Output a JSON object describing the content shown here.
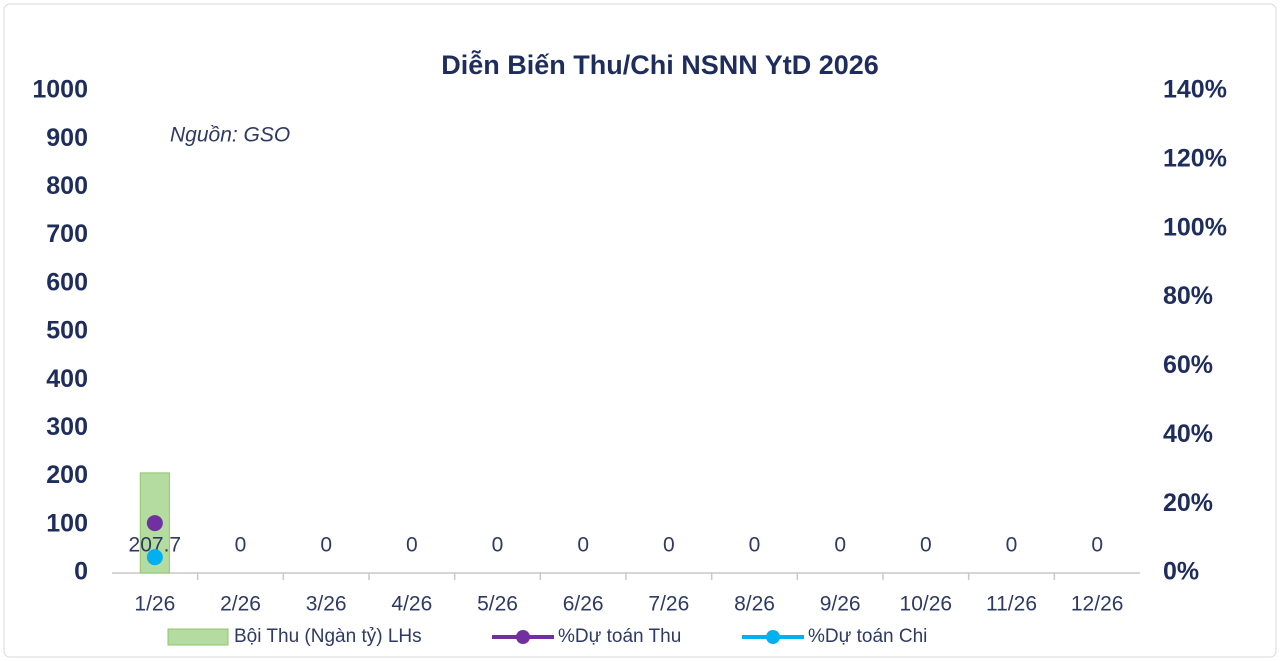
{
  "chart_data": {
    "type": "bar-line",
    "title": "Diễn Biến Thu/Chi NSNN YtD 2026",
    "annotation": "Nguồn: GSO",
    "categories": [
      "1/26",
      "2/26",
      "3/26",
      "4/26",
      "5/26",
      "6/26",
      "7/26",
      "8/26",
      "9/26",
      "10/26",
      "11/26",
      "12/26"
    ],
    "series": [
      {
        "name": "Bội Thu (Ngàn tỷ) LHs",
        "type": "bar",
        "color": "#b5dca0",
        "values": [
          207.7,
          0,
          0,
          0,
          0,
          0,
          0,
          0,
          0,
          0,
          0,
          0
        ]
      },
      {
        "name": "%Dự toán Thu",
        "type": "line",
        "axis": "y2",
        "color": "#7030a0",
        "values": [
          14.5,
          null,
          null,
          null,
          null,
          null,
          null,
          null,
          null,
          null,
          null,
          null
        ]
      },
      {
        "name": "%Dự toán Chi",
        "type": "line",
        "axis": "y2",
        "color": "#00b0f0",
        "values": [
          4.6,
          null,
          null,
          null,
          null,
          null,
          null,
          null,
          null,
          null,
          null,
          null
        ]
      }
    ],
    "ylim": [
      0,
      1000
    ],
    "yticks": [
      0,
      100,
      200,
      300,
      400,
      500,
      600,
      700,
      800,
      900,
      1000
    ],
    "y2lim": [
      0,
      140
    ],
    "y2ticks": [
      {
        "value": 0,
        "label": "0%"
      },
      {
        "value": 20,
        "label": "20%"
      },
      {
        "value": 40,
        "label": "40%"
      },
      {
        "value": 60,
        "label": "60%"
      },
      {
        "value": 80,
        "label": "80%"
      },
      {
        "value": 100,
        "label": "100%"
      },
      {
        "value": 120,
        "label": "120%"
      },
      {
        "value": 140,
        "label": "140%"
      }
    ],
    "grid": false
  }
}
